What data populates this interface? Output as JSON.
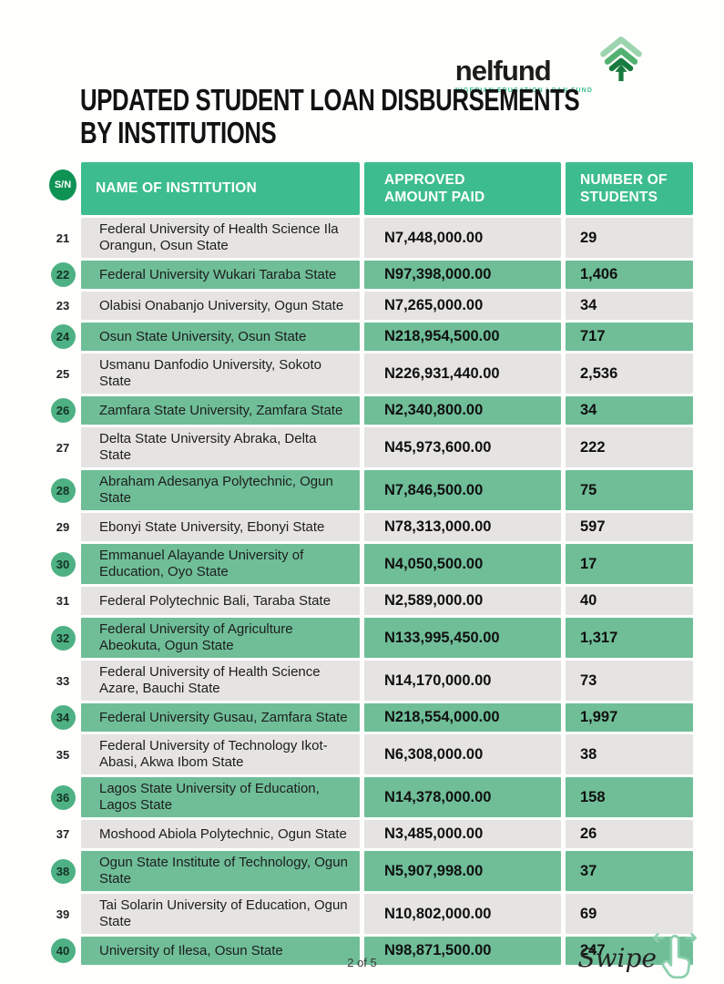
{
  "logo": {
    "name": "nelfund",
    "tagline": "NIGERIAN EDUCATION LOAN FUND"
  },
  "title": {
    "line1": "UPDATED STUDENT LOAN DISBURSEMENTS",
    "line2": "BY INSTITUTIONS"
  },
  "table": {
    "sn_header": "S/N",
    "headers": {
      "name": "NAME OF INSTITUTION",
      "amount": "APPROVED AMOUNT PAID",
      "students": "NUMBER OF STUDENTS"
    },
    "rows": [
      {
        "sn": 21,
        "name": "Federal University of Health Science Ila Orangun, Osun State",
        "amount": "N7,448,000.00",
        "students": "29"
      },
      {
        "sn": 22,
        "name": "Federal University Wukari Taraba State",
        "amount": "N97,398,000.00",
        "students": "1,406"
      },
      {
        "sn": 23,
        "name": "Olabisi Onabanjo University, Ogun State",
        "amount": "N7,265,000.00",
        "students": "34"
      },
      {
        "sn": 24,
        "name": "Osun State University, Osun State",
        "amount": "N218,954,500.00",
        "students": "717"
      },
      {
        "sn": 25,
        "name": "Usmanu Danfodio University, Sokoto State",
        "amount": "N226,931,440.00",
        "students": "2,536"
      },
      {
        "sn": 26,
        "name": "Zamfara State University, Zamfara State",
        "amount": "N2,340,800.00",
        "students": "34"
      },
      {
        "sn": 27,
        "name": "Delta State University Abraka, Delta State",
        "amount": "N45,973,600.00",
        "students": "222"
      },
      {
        "sn": 28,
        "name": "Abraham Adesanya Polytechnic, Ogun State",
        "amount": "N7,846,500.00",
        "students": "75"
      },
      {
        "sn": 29,
        "name": "Ebonyi State University, Ebonyi State",
        "amount": "N78,313,000.00",
        "students": "597"
      },
      {
        "sn": 30,
        "name": "Emmanuel Alayande University of Education, Oyo State",
        "amount": "N4,050,500.00",
        "students": "17"
      },
      {
        "sn": 31,
        "name": "Federal Polytechnic Bali, Taraba State",
        "amount": "N2,589,000.00",
        "students": "40"
      },
      {
        "sn": 32,
        "name": "Federal University of Agriculture Abeokuta, Ogun State",
        "amount": "N133,995,450.00",
        "students": "1,317"
      },
      {
        "sn": 33,
        "name": "Federal University of Health Science Azare, Bauchi State",
        "amount": "N14,170,000.00",
        "students": "73"
      },
      {
        "sn": 34,
        "name": "Federal University Gusau, Zamfara State",
        "amount": "N218,554,000.00",
        "students": "1,997"
      },
      {
        "sn": 35,
        "name": "Federal University of Technology Ikot-Abasi, Akwa Ibom State",
        "amount": "N6,308,000.00",
        "students": "38"
      },
      {
        "sn": 36,
        "name": "Lagos State University of Education, Lagos State",
        "amount": "N14,378,000.00",
        "students": "158"
      },
      {
        "sn": 37,
        "name": "Moshood Abiola Polytechnic, Ogun State",
        "amount": "N3,485,000.00",
        "students": "26"
      },
      {
        "sn": 38,
        "name": "Ogun State Institute of Technology, Ogun State",
        "amount": "N5,907,998.00",
        "students": "37"
      },
      {
        "sn": 39,
        "name": "Tai Solarin University of Education, Ogun State",
        "amount": "N10,802,000.00",
        "students": "69"
      },
      {
        "sn": 40,
        "name": "University of Ilesa, Osun State",
        "amount": "N98,871,500.00",
        "students": "247"
      }
    ]
  },
  "footer": {
    "page_indicator": "2 of 5",
    "swipe_label": "Swipe"
  },
  "colors": {
    "header_green": "#3dbd8e",
    "row_green": "#6fbe98",
    "row_gray": "#e5e4e2",
    "sn_badge": "#0f9355",
    "number_circle": "#4eb184",
    "swipe_green": "#8ccfad",
    "logo_chevron_light": "#9bd4ae",
    "logo_chevron_mid": "#53b171",
    "logo_chevron_dark": "#177a3e"
  }
}
